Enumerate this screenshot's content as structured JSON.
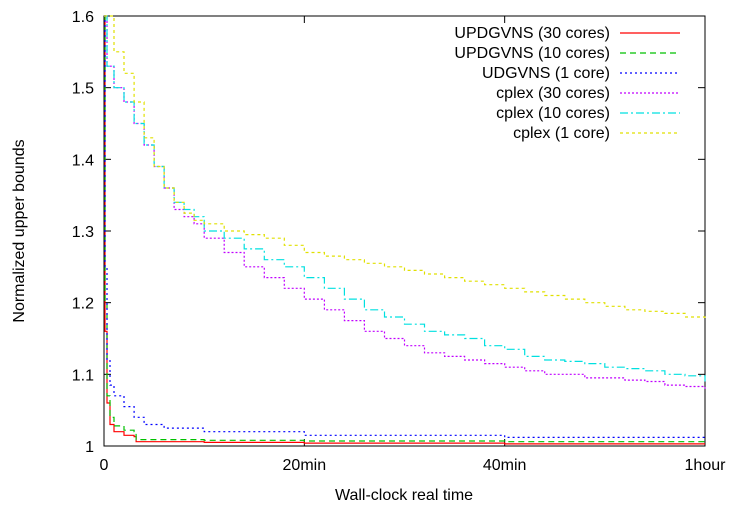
{
  "chart_data": {
    "type": "line",
    "xlabel": "Wall-clock real time",
    "ylabel": "Normalized upper bounds",
    "xlim": [
      0,
      60
    ],
    "ylim": [
      1.0,
      1.6
    ],
    "x_ticks": [
      {
        "value": 0,
        "label": "0"
      },
      {
        "value": 20,
        "label": "20min"
      },
      {
        "value": 40,
        "label": "40min"
      },
      {
        "value": 60,
        "label": "1hour"
      }
    ],
    "y_ticks": [
      {
        "value": 1.0,
        "label": "1"
      },
      {
        "value": 1.1,
        "label": "1.1"
      },
      {
        "value": 1.2,
        "label": "1.2"
      },
      {
        "value": 1.3,
        "label": "1.3"
      },
      {
        "value": 1.4,
        "label": "1.4"
      },
      {
        "value": 1.5,
        "label": "1.5"
      },
      {
        "value": 1.6,
        "label": "1.6"
      }
    ],
    "legend_position": "top-right",
    "series": [
      {
        "name": "UPDGVNS (30 cores)",
        "color": "#ff0000",
        "dash": "solid",
        "x": [
          0,
          0.1,
          0.3,
          0.6,
          1.0,
          2.0,
          3.0,
          3.2,
          10,
          20,
          40,
          60
        ],
        "y": [
          1.6,
          1.16,
          1.06,
          1.03,
          1.02,
          1.015,
          1.013,
          1.006,
          1.005,
          1.004,
          1.003,
          1.003
        ]
      },
      {
        "name": "UPDGVNS (10 cores)",
        "color": "#00c000",
        "dash": "6,4",
        "x": [
          0,
          0.1,
          0.3,
          0.6,
          1.0,
          2.0,
          3.0,
          3.2,
          10,
          20,
          40,
          60
        ],
        "y": [
          1.6,
          1.2,
          1.07,
          1.04,
          1.028,
          1.022,
          1.02,
          1.009,
          1.008,
          1.007,
          1.006,
          1.006
        ]
      },
      {
        "name": "UDGVNS (1 core)",
        "color": "#0000ff",
        "dash": "2,3",
        "x": [
          0,
          0.1,
          0.3,
          0.6,
          1.0,
          2.0,
          3.0,
          4.0,
          6.0,
          10,
          20,
          40,
          60
        ],
        "y": [
          1.6,
          1.25,
          1.12,
          1.085,
          1.07,
          1.055,
          1.04,
          1.03,
          1.025,
          1.02,
          1.015,
          1.012,
          1.011
        ]
      },
      {
        "name": "cplex (30 cores)",
        "color": "#c000ff",
        "dash": "2,2",
        "x": [
          0,
          0.3,
          1,
          2,
          3,
          4,
          5,
          6,
          7,
          8,
          9,
          10,
          12,
          14,
          16,
          18,
          20,
          22,
          24,
          26,
          28,
          30,
          32,
          34,
          36,
          38,
          40,
          42,
          44,
          46,
          48,
          50,
          52,
          54,
          56,
          58,
          60
        ],
        "y": [
          1.6,
          1.53,
          1.5,
          1.48,
          1.45,
          1.42,
          1.39,
          1.36,
          1.33,
          1.32,
          1.31,
          1.29,
          1.27,
          1.25,
          1.235,
          1.22,
          1.205,
          1.19,
          1.175,
          1.16,
          1.15,
          1.14,
          1.13,
          1.125,
          1.12,
          1.115,
          1.11,
          1.105,
          1.1,
          1.1,
          1.095,
          1.095,
          1.092,
          1.09,
          1.085,
          1.083,
          1.08
        ]
      },
      {
        "name": "cplex (10 cores)",
        "color": "#00e0e0",
        "dash": "8,3,2,3",
        "x": [
          0,
          0.3,
          1,
          2,
          3,
          4,
          5,
          6,
          7,
          8,
          9,
          10,
          12,
          14,
          16,
          18,
          20,
          22,
          24,
          26,
          28,
          30,
          32,
          34,
          36,
          38,
          40,
          42,
          44,
          46,
          48,
          50,
          52,
          54,
          56,
          58,
          60
        ],
        "y": [
          1.6,
          1.53,
          1.5,
          1.48,
          1.45,
          1.42,
          1.39,
          1.36,
          1.34,
          1.33,
          1.32,
          1.3,
          1.29,
          1.275,
          1.26,
          1.25,
          1.235,
          1.22,
          1.205,
          1.19,
          1.18,
          1.17,
          1.16,
          1.155,
          1.15,
          1.14,
          1.135,
          1.125,
          1.12,
          1.118,
          1.115,
          1.11,
          1.108,
          1.105,
          1.1,
          1.098,
          1.09
        ]
      },
      {
        "name": "cplex (1 core)",
        "color": "#e0e000",
        "dash": "3,3",
        "x": [
          0,
          0.5,
          1,
          2,
          3,
          4,
          5,
          6,
          7,
          8,
          9,
          10,
          12,
          14,
          16,
          18,
          20,
          22,
          24,
          26,
          28,
          30,
          32,
          34,
          36,
          38,
          40,
          42,
          44,
          46,
          48,
          50,
          52,
          54,
          56,
          58,
          60
        ],
        "y": [
          1.6,
          1.6,
          1.55,
          1.52,
          1.48,
          1.43,
          1.39,
          1.36,
          1.34,
          1.325,
          1.315,
          1.31,
          1.3,
          1.295,
          1.29,
          1.28,
          1.27,
          1.265,
          1.26,
          1.255,
          1.25,
          1.245,
          1.24,
          1.235,
          1.23,
          1.225,
          1.22,
          1.215,
          1.21,
          1.205,
          1.2,
          1.195,
          1.19,
          1.188,
          1.185,
          1.18,
          1.175
        ]
      }
    ]
  }
}
